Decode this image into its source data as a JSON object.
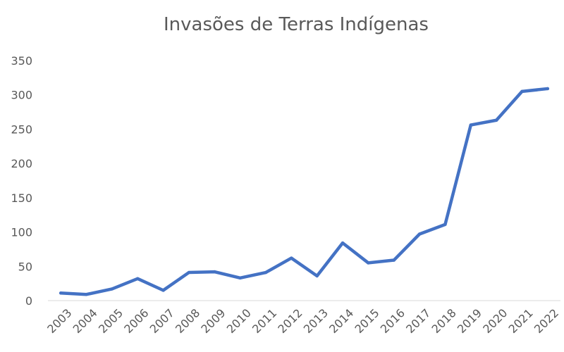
{
  "chart_data": {
    "type": "line",
    "title": "Invasões de Terras Indígenas",
    "xlabel": "",
    "ylabel": "",
    "categories": [
      "2003",
      "2004",
      "2005",
      "2006",
      "2007",
      "2008",
      "2009",
      "2010",
      "2011",
      "2012",
      "2013",
      "2014",
      "2015",
      "2016",
      "2017",
      "2018",
      "2019",
      "2020",
      "2021",
      "2022"
    ],
    "series": [
      {
        "values": [
          11,
          9,
          17,
          32,
          15,
          41,
          42,
          33,
          41,
          62,
          36,
          84,
          55,
          59,
          97,
          111,
          256,
          263,
          305,
          309
        ],
        "color": "#4472c4"
      }
    ],
    "yticks": [
      "0",
      "50",
      "100",
      "150",
      "200",
      "250",
      "300",
      "350"
    ],
    "ylim": [
      0,
      350
    ],
    "grid": false,
    "legend": "none"
  }
}
